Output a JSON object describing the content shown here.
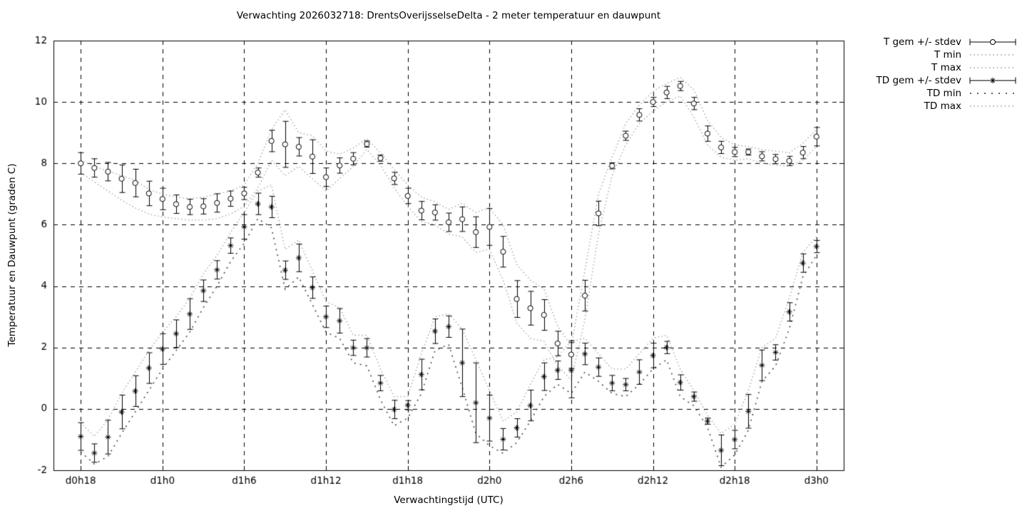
{
  "title": "Verwachting 2026032718: DrentsOverijsselseDelta - 2 meter temperatuur en dauwpunt",
  "axes": {
    "xlabel": "Verwachtingstijd (UTC)",
    "ylabel": "Temperatuur en Dauwpunt (graden C)"
  },
  "legend": {
    "position": "outside-right-top",
    "items": [
      {
        "label": "T gem +/- stdev",
        "style": "errorbar-circle"
      },
      {
        "label": "T min",
        "style": "dotted"
      },
      {
        "label": "T max",
        "style": "dotted"
      },
      {
        "label": "TD gem +/- stdev",
        "style": "errorbar-asterisk"
      },
      {
        "label": "TD min",
        "style": "dotted-bold"
      },
      {
        "label": "TD max",
        "style": "dotted"
      }
    ]
  },
  "colors": {
    "foreground": "#000000",
    "background": "#ffffff",
    "envelope_light": "#9a9a9a",
    "envelope_dark": "#4a4a4a"
  },
  "chart_data": {
    "type": "line",
    "title": "Verwachting 2026032718: DrentsOverijsselseDelta - 2 meter temperatuur en dauwpunt",
    "xlabel": "Verwachtingstijd (UTC)",
    "ylabel": "Temperatuur en Dauwpunt (graden C)",
    "grid": true,
    "legend_position": "outside-right-top",
    "ylim": [
      -2,
      12
    ],
    "yticks": [
      -2,
      0,
      2,
      4,
      6,
      8,
      10,
      12
    ],
    "xlim_hours": [
      16,
      74
    ],
    "xticks": [
      {
        "hour": 18,
        "label": "d0h18"
      },
      {
        "hour": 24,
        "label": "d1h0"
      },
      {
        "hour": 30,
        "label": "d1h6"
      },
      {
        "hour": 36,
        "label": "d1h12"
      },
      {
        "hour": 42,
        "label": "d1h18"
      },
      {
        "hour": 48,
        "label": "d2h0"
      },
      {
        "hour": 54,
        "label": "d2h6"
      },
      {
        "hour": 60,
        "label": "d2h12"
      },
      {
        "hour": 66,
        "label": "d2h18"
      },
      {
        "hour": 72,
        "label": "d3h0"
      }
    ],
    "x_start_hour": 18,
    "x_step_hours": 1,
    "x_hours": [
      18,
      19,
      20,
      21,
      22,
      23,
      24,
      25,
      26,
      27,
      28,
      29,
      30,
      31,
      32,
      33,
      34,
      35,
      36,
      37,
      38,
      39,
      40,
      41,
      42,
      43,
      44,
      45,
      46,
      47,
      48,
      49,
      50,
      51,
      52,
      53,
      54,
      55,
      56,
      57,
      58,
      59,
      60,
      61,
      62,
      63,
      64,
      65,
      66,
      67,
      68,
      69,
      70,
      71,
      72
    ],
    "series": [
      {
        "name": "T gem +/- stdev",
        "style": "errorbar-circle",
        "values": [
          8.0,
          7.85,
          7.73,
          7.5,
          7.36,
          7.02,
          6.84,
          6.67,
          6.58,
          6.6,
          6.71,
          6.85,
          7.02,
          7.7,
          8.73,
          8.62,
          8.54,
          8.22,
          7.55,
          7.93,
          8.15,
          8.63,
          8.17,
          7.51,
          6.94,
          6.46,
          6.4,
          6.08,
          6.18,
          5.76,
          5.93,
          5.12,
          3.58,
          3.28,
          3.06,
          2.13,
          1.77,
          3.69,
          6.37,
          7.92,
          8.9,
          9.58,
          10.0,
          10.31,
          10.52,
          9.95,
          8.97,
          8.52,
          8.37,
          8.37,
          8.23,
          8.14,
          8.08,
          8.35,
          8.87
        ],
        "stdev": [
          0.35,
          0.3,
          0.3,
          0.45,
          0.45,
          0.4,
          0.35,
          0.3,
          0.25,
          0.25,
          0.3,
          0.25,
          0.2,
          0.15,
          0.35,
          0.75,
          0.3,
          0.55,
          0.3,
          0.25,
          0.2,
          0.1,
          0.1,
          0.2,
          0.25,
          0.3,
          0.25,
          0.3,
          0.4,
          0.5,
          0.6,
          0.5,
          0.6,
          0.55,
          0.5,
          0.4,
          0.45,
          0.5,
          0.4,
          0.1,
          0.15,
          0.2,
          0.15,
          0.2,
          0.15,
          0.2,
          0.25,
          0.2,
          0.15,
          0.1,
          0.15,
          0.15,
          0.15,
          0.2,
          0.3
        ]
      },
      {
        "name": "T min",
        "style": "dotted",
        "values": [
          7.7,
          7.4,
          7.1,
          6.8,
          6.55,
          6.35,
          6.25,
          6.2,
          6.15,
          6.15,
          6.2,
          6.35,
          6.6,
          7.2,
          8.1,
          7.6,
          7.9,
          7.5,
          7.1,
          7.5,
          7.9,
          8.45,
          7.95,
          7.2,
          6.6,
          6.1,
          6.0,
          5.7,
          5.6,
          5.1,
          5.2,
          4.2,
          2.8,
          2.3,
          2.2,
          1.4,
          0.95,
          2.9,
          5.7,
          7.6,
          8.6,
          9.3,
          9.7,
          10.0,
          10.2,
          9.5,
          8.6,
          8.2,
          8.1,
          8.15,
          8.0,
          7.95,
          7.9,
          8.1,
          8.55
        ]
      },
      {
        "name": "T max",
        "style": "dotted",
        "values": [
          8.1,
          7.9,
          7.75,
          7.6,
          7.45,
          7.15,
          7.0,
          6.9,
          6.85,
          6.9,
          7.0,
          7.1,
          7.3,
          8.0,
          9.1,
          9.75,
          9.0,
          8.9,
          8.4,
          8.3,
          8.5,
          8.8,
          8.35,
          7.8,
          7.3,
          6.9,
          6.75,
          6.5,
          6.7,
          6.4,
          6.55,
          6.0,
          4.7,
          4.2,
          3.9,
          2.7,
          2.05,
          4.5,
          7.0,
          8.2,
          9.3,
          9.9,
          10.35,
          10.6,
          10.8,
          10.4,
          9.4,
          8.85,
          8.6,
          8.55,
          8.45,
          8.4,
          8.35,
          8.65,
          9.1
        ]
      },
      {
        "name": "TD gem +/- stdev",
        "style": "errorbar-asterisk",
        "values": [
          -0.9,
          -1.44,
          -0.92,
          -0.1,
          0.58,
          1.33,
          1.95,
          2.45,
          3.09,
          3.85,
          4.53,
          5.32,
          5.93,
          6.68,
          6.58,
          4.52,
          4.92,
          3.95,
          3.0,
          2.87,
          1.99,
          1.99,
          0.84,
          -0.02,
          0.12,
          1.12,
          2.53,
          2.68,
          1.5,
          0.2,
          -0.3,
          -0.99,
          -0.62,
          0.11,
          1.05,
          1.26,
          1.26,
          1.79,
          1.36,
          0.84,
          0.79,
          1.2,
          1.74,
          2.0,
          0.86,
          0.4,
          -0.4,
          -1.35,
          -1.0,
          -0.08,
          1.42,
          1.84,
          3.16,
          4.75,
          5.29
        ],
        "stdev": [
          0.45,
          0.3,
          0.55,
          0.55,
          0.5,
          0.5,
          0.5,
          0.45,
          0.5,
          0.35,
          0.3,
          0.25,
          0.4,
          0.35,
          0.35,
          0.3,
          0.45,
          0.35,
          0.35,
          0.4,
          0.25,
          0.3,
          0.25,
          0.3,
          0.15,
          0.5,
          0.4,
          0.35,
          1.1,
          1.3,
          0.75,
          0.35,
          0.3,
          0.5,
          0.45,
          0.3,
          0.9,
          0.35,
          0.3,
          0.25,
          0.2,
          0.4,
          0.4,
          0.2,
          0.25,
          0.15,
          0.1,
          0.5,
          0.3,
          0.55,
          0.5,
          0.25,
          0.3,
          0.3,
          0.2
        ]
      },
      {
        "name": "TD min",
        "style": "dotted-bold",
        "values": [
          -1.4,
          -1.8,
          -1.55,
          -0.8,
          -0.1,
          0.6,
          1.3,
          1.9,
          2.5,
          3.3,
          4.0,
          4.8,
          5.4,
          6.2,
          5.9,
          3.9,
          4.3,
          3.4,
          2.5,
          2.3,
          1.5,
          1.4,
          0.3,
          -0.55,
          -0.3,
          0.5,
          1.9,
          2.1,
          0.7,
          -0.8,
          -1.2,
          -1.45,
          -1.1,
          -0.4,
          0.4,
          0.8,
          0.5,
          1.2,
          0.9,
          0.5,
          0.4,
          0.8,
          1.3,
          1.6,
          0.4,
          0.1,
          -0.6,
          -1.9,
          -1.5,
          -0.7,
          0.9,
          1.4,
          2.6,
          4.3,
          5.0
        ]
      },
      {
        "name": "TD max",
        "style": "dotted",
        "values": [
          -0.45,
          -0.9,
          -0.35,
          0.5,
          1.2,
          1.9,
          2.5,
          3.0,
          3.6,
          4.4,
          5.0,
          5.75,
          6.4,
          7.1,
          7.3,
          5.2,
          5.5,
          4.5,
          3.5,
          3.3,
          2.4,
          2.4,
          1.3,
          0.4,
          0.4,
          1.8,
          3.0,
          3.1,
          2.6,
          1.6,
          0.6,
          -0.4,
          -0.1,
          0.8,
          1.6,
          1.7,
          2.2,
          2.3,
          1.8,
          1.3,
          1.3,
          1.8,
          2.3,
          2.4,
          1.3,
          0.6,
          -0.2,
          -0.8,
          -0.5,
          0.6,
          2.0,
          2.3,
          3.6,
          5.1,
          5.6
        ]
      }
    ]
  }
}
